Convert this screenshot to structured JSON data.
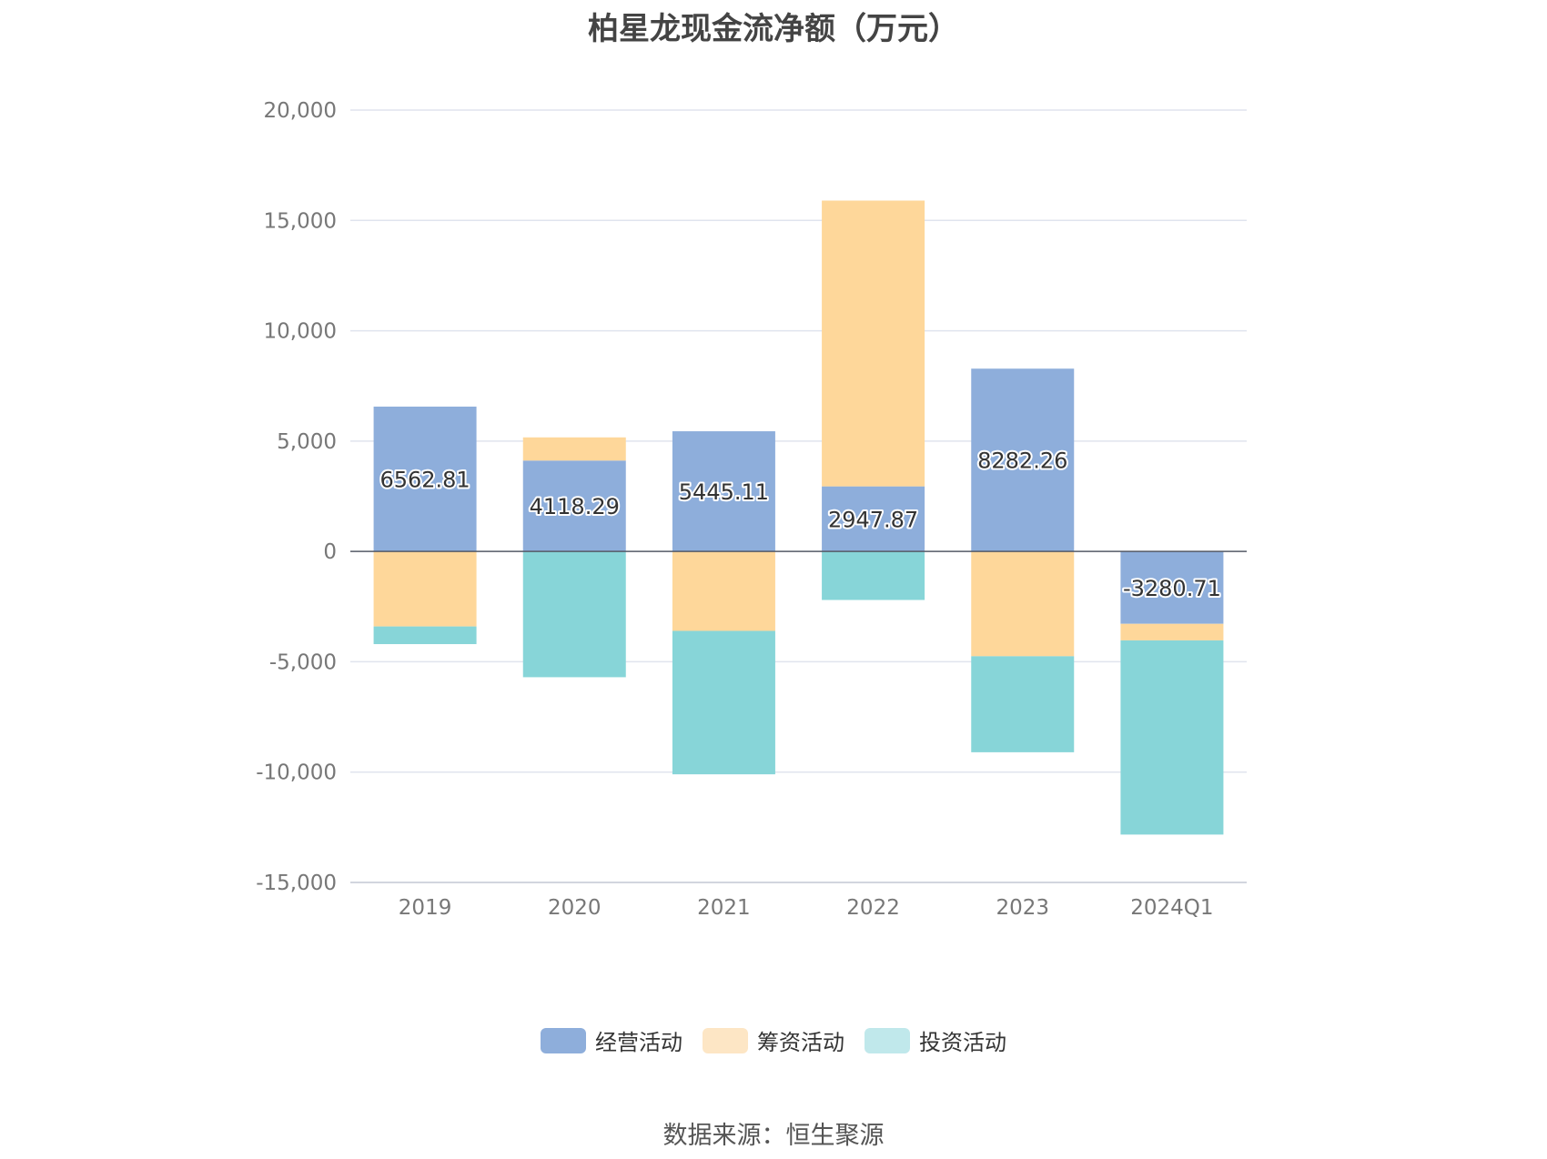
{
  "chart_data": {
    "type": "bar",
    "stacked": true,
    "title": "柏星龙现金流净额（万元）",
    "categories": [
      "2019",
      "2020",
      "2021",
      "2022",
      "2023",
      "2024Q1"
    ],
    "series": [
      {
        "name": "经营活动",
        "color": "#8eaedb",
        "legend_color": "#8eaedb",
        "values": [
          6562.81,
          4118.29,
          5445.11,
          2947.87,
          8282.26,
          -3280.71
        ],
        "labels": [
          "6562.81",
          "4118.29",
          "5445.11",
          "2947.87",
          "8282.26",
          "-3280.71"
        ]
      },
      {
        "name": "筹资活动",
        "color": "#fed79a",
        "legend_color": "#fde6c5",
        "values": [
          -3400,
          1050,
          -3600,
          12950,
          -4750,
          -750
        ]
      },
      {
        "name": "投资活动",
        "color": "#87d5d8",
        "legend_color": "#c0e8eb",
        "values": [
          -800,
          -5700,
          -6500,
          -2200,
          -4350,
          -8800
        ]
      }
    ],
    "yticks": [
      20000,
      15000,
      10000,
      5000,
      0,
      -5000,
      -10000,
      -15000
    ],
    "ytick_labels": [
      "20,000",
      "15,000",
      "10,000",
      "5,000",
      "0",
      "-5,000",
      "-10,000",
      "-15,000"
    ],
    "ylim": [
      -15000,
      20000
    ],
    "xlabel": "",
    "ylabel": "",
    "grid": true,
    "legend_position": "bottom",
    "colors": {
      "grid": "#e0e4ee",
      "zero_line": "#555a66",
      "axis": "#c8ccd6"
    }
  },
  "footer": {
    "source": "数据来源：恒生聚源"
  }
}
